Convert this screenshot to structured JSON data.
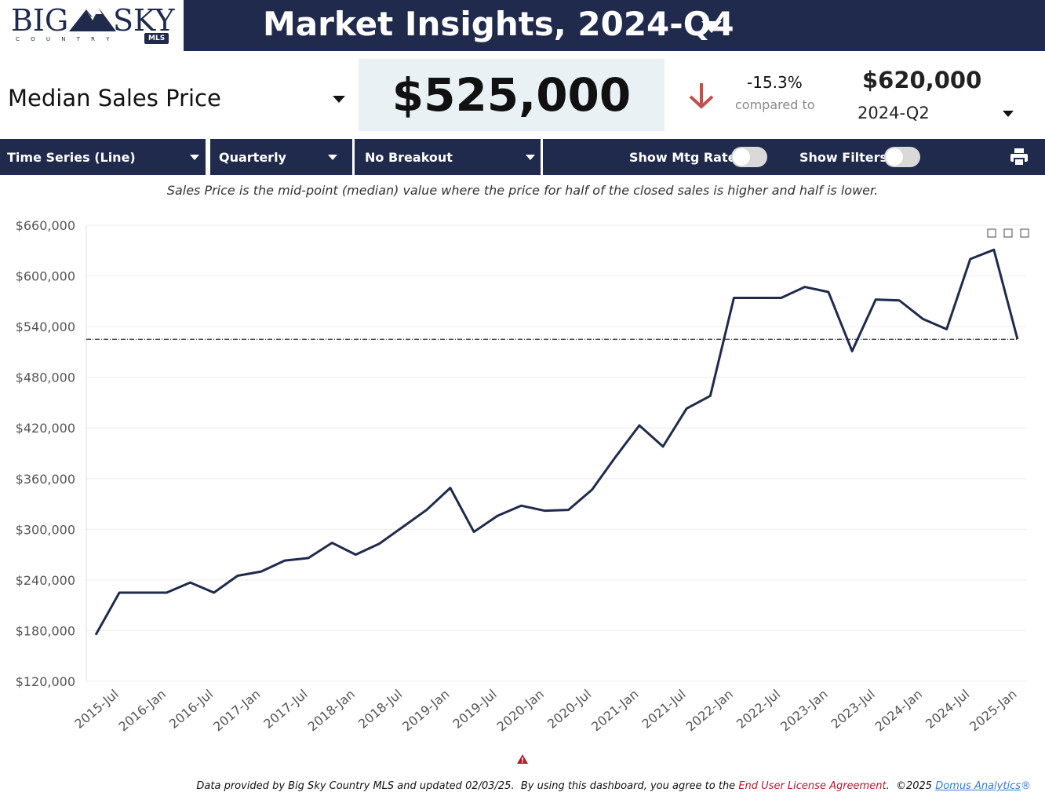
{
  "header": {
    "logo": {
      "big": "BIG",
      "sky": "SKY",
      "country": "C O U N T R Y",
      "mls": "MLS"
    },
    "title": "Market Insights, 2024-Q4"
  },
  "summary": {
    "metric": "Median Sales Price",
    "value": "$525,000",
    "change": "-15.3%",
    "compared_label": "compared to",
    "compare_value": "$620,000",
    "compare_period": "2024-Q2"
  },
  "controls": {
    "chart_type": "Time Series (Line)",
    "frequency": "Quarterly",
    "breakout": "No Breakout",
    "mtg_rate": "Show Mtg Rate:",
    "filters": "Show Filters:"
  },
  "description": "Sales Price is the mid-point (median) value where the price for half of the closed sales is higher and half is lower.",
  "footer": {
    "text": "Data provided by Big Sky Country MLS and updated 02/03/25.  By using this dashboard, you agree to the ",
    "eula": "End User License Agreement",
    "copyright": ".  ©2025 ",
    "domus": "Domus Analytics",
    "reg": "®"
  },
  "chart_data": {
    "type": "line",
    "color": "#1f2a4d",
    "categories": [
      null,
      "2015-Jul",
      null,
      "2016-Jan",
      null,
      "2016-Jul",
      null,
      "2017-Jan",
      null,
      "2017-Jul",
      null,
      "2018-Jan",
      null,
      "2018-Jul",
      null,
      "2019-Jan",
      null,
      "2019-Jul",
      null,
      "2020-Jan",
      null,
      "2020-Jul",
      null,
      "2021-Jan",
      null,
      "2021-Jul",
      null,
      "2022-Jan",
      null,
      "2022-Jul",
      null,
      "2023-Jan",
      null,
      "2023-Jul",
      null,
      "2024-Jan",
      null,
      "2024-Jul",
      null,
      "2025-Jan"
    ],
    "values": [
      175000,
      225000,
      225000,
      225000,
      237000,
      225000,
      245000,
      250000,
      263000,
      266000,
      284000,
      270000,
      283000,
      303000,
      323000,
      349000,
      297000,
      316000,
      328000,
      322000,
      323000,
      347000,
      386000,
      423000,
      398000,
      443000,
      458000,
      574000,
      574000,
      574000,
      587000,
      581000,
      511000,
      572000,
      571000,
      549000,
      537000,
      620000,
      631000,
      525000
    ],
    "reference_line": 525000,
    "ylim": [
      120000,
      660000
    ],
    "yticks": [
      {
        "value": 120000,
        "label": "$120,000"
      },
      {
        "value": 180000,
        "label": "$180,000"
      },
      {
        "value": 240000,
        "label": "$240,000"
      },
      {
        "value": 300000,
        "label": "$300,000"
      },
      {
        "value": 360000,
        "label": "$360,000"
      },
      {
        "value": 420000,
        "label": "$420,000"
      },
      {
        "value": 480000,
        "label": "$480,000"
      },
      {
        "value": 540000,
        "label": "$540,000"
      },
      {
        "value": 600000,
        "label": "$600,000"
      },
      {
        "value": 660000,
        "label": "$660,000"
      }
    ],
    "grid": true
  }
}
